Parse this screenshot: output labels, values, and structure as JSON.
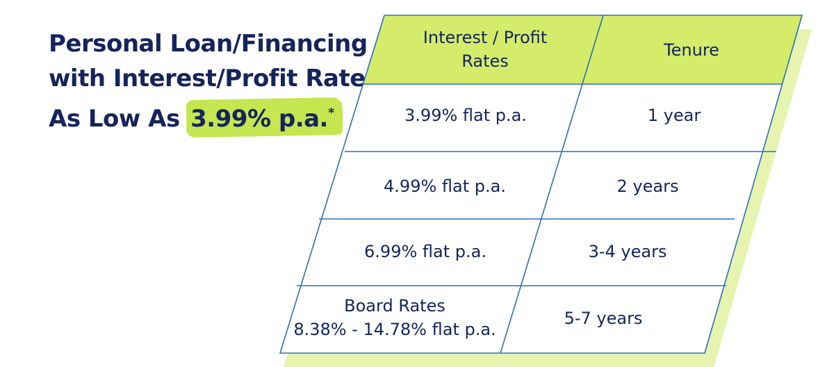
{
  "headline": {
    "line1": "Personal Loan/Financing",
    "line2": "with Interest/Profit Rate",
    "line3_prefix": "As Low As",
    "highlight": "3.99% p.a.",
    "asterisk": "*"
  },
  "table": {
    "headers": {
      "rate_line1": "Interest / Profit",
      "rate_line2": "Rates",
      "tenure": "Tenure"
    },
    "rows": [
      {
        "rate": "3.99% flat p.a.",
        "tenure": "1 year"
      },
      {
        "rate": "4.99% flat p.a.",
        "tenure": "2 years"
      },
      {
        "rate": "6.99% flat p.a.",
        "tenure": "3-4 years"
      },
      {
        "rate_line1": "Board Rates",
        "rate_line2": "8.38% - 14.78% flat p.a.",
        "tenure": "5-7 years"
      }
    ]
  },
  "colors": {
    "navy": "#15245c",
    "header_green": "#d4ec6a",
    "shadow_green": "#e6f4b0",
    "grid_blue": "#2f6fb5",
    "highlight_green": "#c5e650"
  }
}
